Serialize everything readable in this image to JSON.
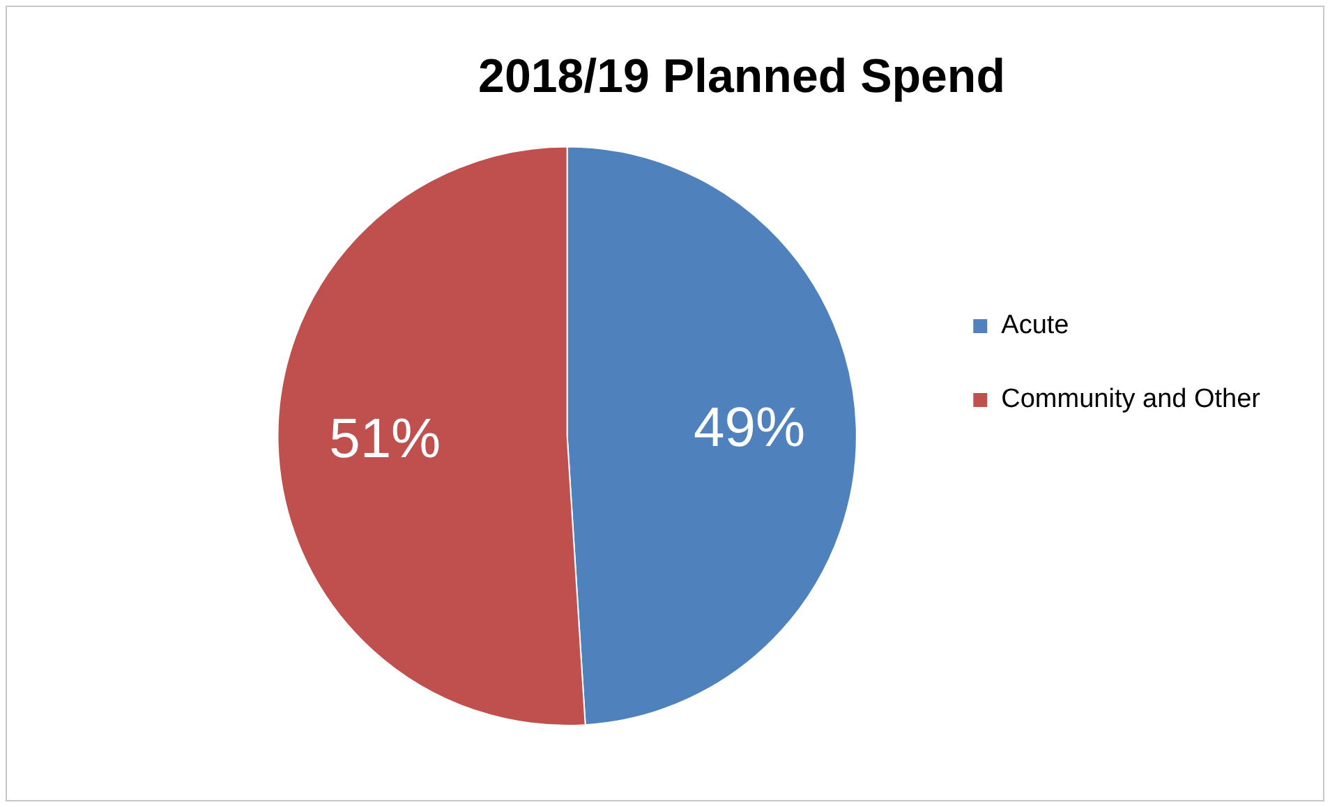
{
  "chart_data": {
    "type": "pie",
    "title": "2018/19 Planned Spend",
    "categories": [
      "Acute",
      "Community and Other"
    ],
    "values": [
      49,
      51
    ],
    "colors": [
      "#4f81bd",
      "#c0504d"
    ],
    "value_labels": [
      "49%",
      "51%"
    ],
    "legend": "right"
  }
}
